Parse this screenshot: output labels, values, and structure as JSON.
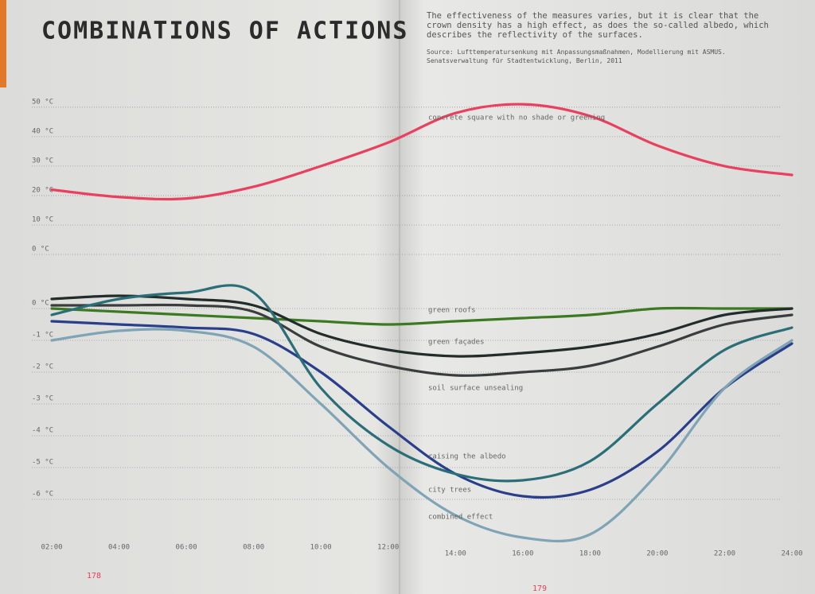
{
  "chart_data": {
    "type": "line",
    "title": "COMBINATIONS OF ACTIONS",
    "subtitle": "The effectiveness of the measures varies, but it is clear that the crown density has a high effect, as does the so-called albedo, which describes the reflectivity of the surfaces.",
    "source": "Source: Lufttemperatursenkung mit Anpassungsmaßnahmen, Modellierung mit ASMUS. Senatsverwaltung für Stadtentwicklung, Berlin, 2011",
    "page_numbers": [
      "178",
      "179"
    ],
    "categories": [
      "02:00",
      "04:00",
      "06:00",
      "08:00",
      "10:00",
      "12:00",
      "14:00",
      "16:00",
      "18:00",
      "20:00",
      "22:00",
      "24:00"
    ],
    "y2lim": [
      0,
      54
    ],
    "y2ticks": [
      {
        "value": 0,
        "label": "0 °C"
      },
      {
        "value": 10,
        "label": "10 °C"
      },
      {
        "value": 20,
        "label": "20 °C"
      },
      {
        "value": 30,
        "label": "30 °C"
      },
      {
        "value": 40,
        "label": "40 °C"
      },
      {
        "value": 50,
        "label": "50 °C"
      }
    ],
    "ylim": [
      -7.5,
      0.8
    ],
    "yticks": [
      {
        "value": 0,
        "label": "0 °C"
      },
      {
        "value": -1,
        "label": "-1 °C"
      },
      {
        "value": -2,
        "label": "-2 °C"
      },
      {
        "value": -3,
        "label": "-3 °C"
      },
      {
        "value": -4,
        "label": "-4 °C"
      },
      {
        "value": -5,
        "label": "-5 °C"
      },
      {
        "value": -6,
        "label": "-6 °C"
      }
    ],
    "grid": true,
    "series": [
      {
        "name": "concrete square with no shade or greening",
        "color": "#e8405e",
        "axis": "y2",
        "values": [
          22,
          19.5,
          19,
          23,
          30,
          38,
          48,
          51,
          47,
          37,
          30,
          27
        ]
      },
      {
        "name": "green roofs",
        "color": "#3c7a22",
        "values": [
          0,
          -0.1,
          -0.2,
          -0.3,
          -0.4,
          -0.5,
          -0.4,
          -0.3,
          -0.2,
          0,
          0,
          0
        ]
      },
      {
        "name": "green façades",
        "color": "#222c2a",
        "values": [
          0.3,
          0.4,
          0.3,
          0.1,
          -0.8,
          -1.3,
          -1.5,
          -1.4,
          -1.2,
          -0.8,
          -0.2,
          0
        ]
      },
      {
        "name": "soil surface unsealing",
        "color": "#3a3d3e",
        "values": [
          0.1,
          0.1,
          0.1,
          -0.1,
          -1.2,
          -1.8,
          -2.1,
          -2,
          -1.8,
          -1.2,
          -0.5,
          -0.2
        ]
      },
      {
        "name": "raising the albedo",
        "color": "#2a3f8c",
        "values": [
          -0.4,
          -0.5,
          -0.6,
          -0.8,
          -2,
          -3.7,
          -5.2,
          -5.9,
          -5.7,
          -4.5,
          -2.5,
          -1.1
        ]
      },
      {
        "name": "city trees",
        "color": "#2a6f78",
        "values": [
          -0.2,
          0.3,
          0.5,
          0.5,
          -2.5,
          -4.3,
          -5.2,
          -5.4,
          -4.8,
          -3,
          -1.3,
          -0.6
        ]
      },
      {
        "name": "combined effect",
        "color": "#7ea4b5",
        "values": [
          -1,
          -0.7,
          -0.7,
          -1.2,
          -3,
          -5,
          -6.5,
          -7.2,
          -7.1,
          -5.2,
          -2.5,
          -1
        ]
      }
    ]
  }
}
